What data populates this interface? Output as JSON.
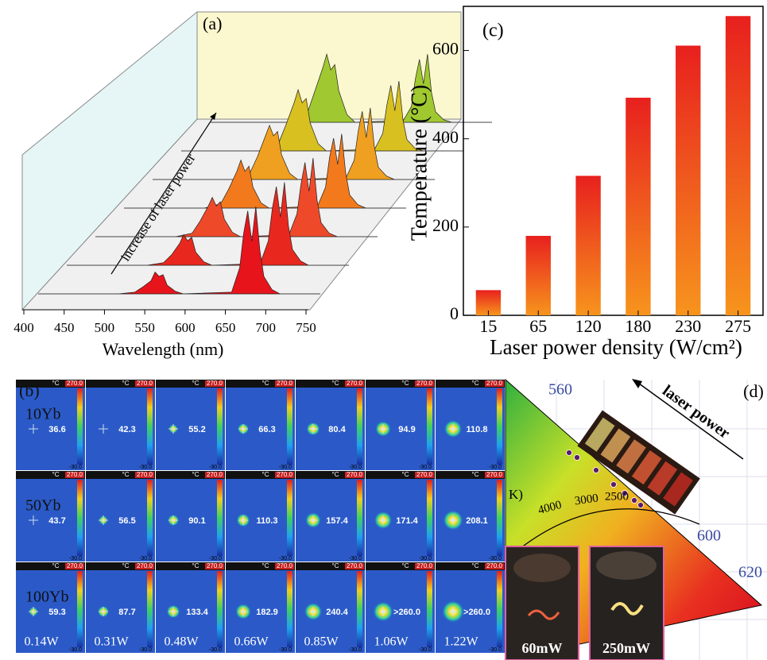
{
  "chart_data": [
    {
      "type": "waterfall",
      "label": "(a)",
      "annotation": "increase of laser power",
      "x_label": "Wavelength (nm)",
      "xlim": [
        400,
        750
      ],
      "xticks": [
        400,
        450,
        500,
        550,
        600,
        650,
        700,
        750
      ],
      "x": [
        400,
        500,
        520,
        530,
        540,
        545,
        550,
        555,
        560,
        570,
        580,
        640,
        650,
        655,
        660,
        665,
        670,
        675,
        680,
        690,
        700,
        750
      ],
      "series": [
        {
          "color": "#e8141b",
          "values": [
            0,
            0,
            2,
            8,
            15,
            25,
            20,
            22,
            10,
            3,
            0,
            2,
            30,
            70,
            95,
            60,
            100,
            50,
            20,
            5,
            0,
            0
          ]
        },
        {
          "color": "#e8281e",
          "values": [
            0,
            0,
            3,
            12,
            25,
            35,
            28,
            32,
            15,
            4,
            0,
            2,
            28,
            65,
            90,
            55,
            95,
            45,
            18,
            5,
            0,
            0
          ]
        },
        {
          "color": "#ee4a2a",
          "values": [
            0,
            0,
            4,
            18,
            35,
            45,
            35,
            40,
            20,
            5,
            0,
            2,
            26,
            60,
            85,
            52,
            90,
            42,
            16,
            4,
            0,
            0
          ]
        },
        {
          "color": "#f27a1c",
          "values": [
            0,
            0,
            5,
            22,
            42,
            55,
            42,
            48,
            24,
            6,
            0,
            2,
            24,
            58,
            80,
            50,
            85,
            40,
            15,
            4,
            0,
            0
          ]
        },
        {
          "color": "#f0a020",
          "values": [
            0,
            0,
            6,
            26,
            50,
            62,
            50,
            55,
            28,
            7,
            0,
            2,
            22,
            55,
            78,
            48,
            82,
            38,
            14,
            4,
            0,
            0
          ]
        },
        {
          "color": "#d8c020",
          "values": [
            0,
            0,
            7,
            30,
            55,
            70,
            55,
            60,
            32,
            8,
            0,
            2,
            20,
            52,
            75,
            46,
            80,
            36,
            13,
            3,
            0,
            0
          ]
        },
        {
          "color": "#a0c830",
          "values": [
            0,
            0,
            8,
            35,
            62,
            78,
            60,
            66,
            36,
            9,
            0,
            2,
            18,
            50,
            72,
            44,
            78,
            34,
            12,
            3,
            0,
            0
          ]
        }
      ]
    },
    {
      "type": "bar",
      "label": "(c)",
      "y_label": "Temperature (°C)",
      "x_label": "Laser power density (W/cm²)",
      "categories": [
        "15",
        "65",
        "120",
        "180",
        "230",
        "275"
      ],
      "values": [
        57,
        180,
        316,
        493,
        611,
        678
      ],
      "color": [
        "#e8201e",
        "#f7941d"
      ],
      "ylim": [
        0,
        700
      ],
      "yticks": [
        0,
        200,
        400,
        600
      ]
    }
  ],
  "panel_b": {
    "label": "(b)",
    "unit": "°C",
    "scale_max": "270.0",
    "scale_min": "-30.0",
    "rows": [
      {
        "name": "10Yb",
        "readings": [
          "36.6",
          "42.3",
          "55.2",
          "66.3",
          "80.4",
          "94.9",
          "110.8"
        ]
      },
      {
        "name": "50Yb",
        "readings": [
          "43.7",
          "56.5",
          "90.1",
          "110.3",
          "157.4",
          "171.4",
          "208.1"
        ]
      },
      {
        "name": "100Yb",
        "readings": [
          "59.3",
          "87.7",
          "133.4",
          "182.9",
          "240.4",
          ">260.0",
          ">260.0"
        ]
      }
    ],
    "powers": [
      "0.14W",
      "0.31W",
      "0.48W",
      "0.66W",
      "0.85W",
      "1.06W",
      "1.22W"
    ]
  },
  "panel_d": {
    "label": "(d)",
    "wavelength_labels": [
      "560",
      "600",
      "620"
    ],
    "cct_labels": [
      "4000",
      "3000",
      "2500"
    ],
    "cct_unit": "K)",
    "annotation": "laser power",
    "photos": [
      "60mW",
      "250mW"
    ]
  }
}
